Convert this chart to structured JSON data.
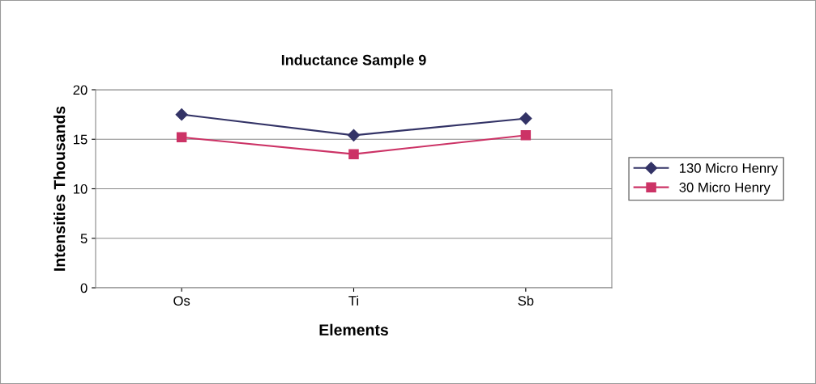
{
  "chart_data": {
    "type": "line",
    "title": "Inductance Sample 9",
    "xlabel": "Elements",
    "ylabel": "Intensities Thousands",
    "categories": [
      "Os",
      "Ti",
      "Sb"
    ],
    "series": [
      {
        "name": "130 Micro Henry",
        "color": "#333366",
        "values": [
          17.5,
          15.4,
          17.1
        ],
        "marker": "diamond"
      },
      {
        "name": "30 Micro Henry",
        "color": "#cc3366",
        "values": [
          15.2,
          13.5,
          15.4
        ],
        "marker": "square"
      }
    ],
    "ylim": [
      0,
      20
    ],
    "yticks": [
      0,
      5,
      10,
      15,
      20
    ],
    "grid": "y",
    "legend": "right",
    "line_style": "solid"
  }
}
